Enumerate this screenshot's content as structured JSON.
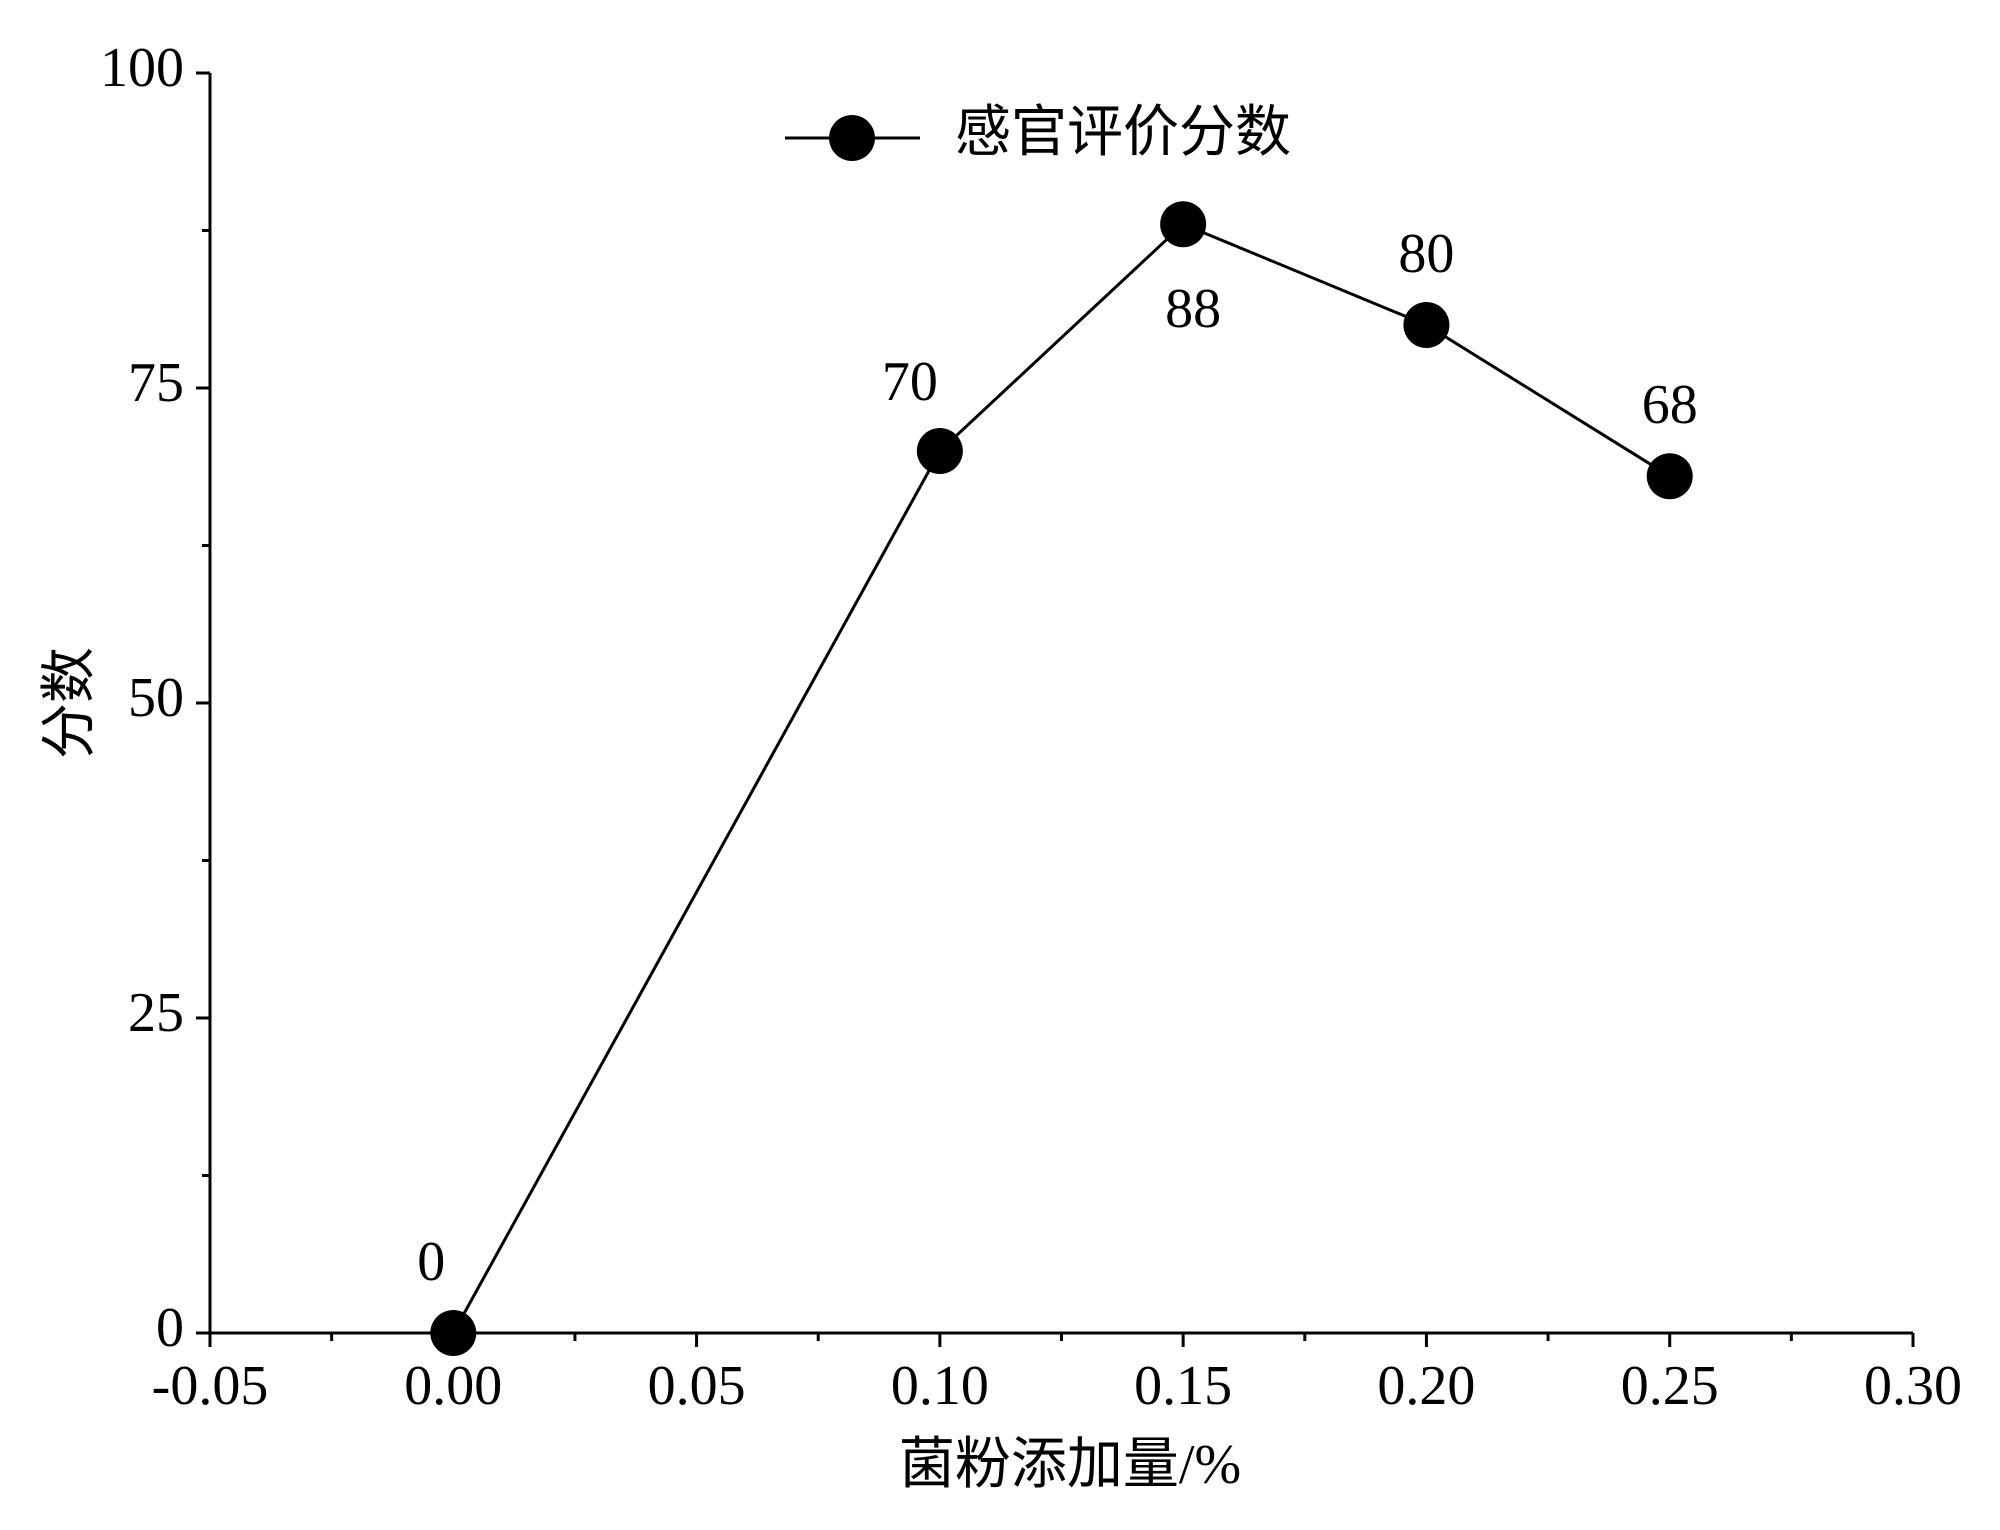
{
  "chart_data": {
    "type": "line",
    "xlabel": "菌粉添加量/%",
    "ylabel": "分数",
    "x": [
      0.0,
      0.1,
      0.15,
      0.2,
      0.25
    ],
    "series": [
      {
        "name": "感官评价分数",
        "color": "#000000",
        "values": [
          0,
          70,
          88,
          80,
          68
        ]
      }
    ],
    "xlim": [
      -0.05,
      0.3
    ],
    "xticks": [
      -0.05,
      {
        "value": 0,
        "label": "0.00"
      },
      0.05,
      {
        "value": 0.1,
        "label": "0.10"
      },
      0.15,
      {
        "value": 0.2,
        "label": "0.20"
      },
      0.25,
      {
        "value": 0.3,
        "label": "0.30"
      }
    ],
    "ylim": [
      0,
      100
    ],
    "yticks": [
      0,
      25,
      50,
      75,
      100
    ],
    "legend": "top",
    "grid": false
  }
}
